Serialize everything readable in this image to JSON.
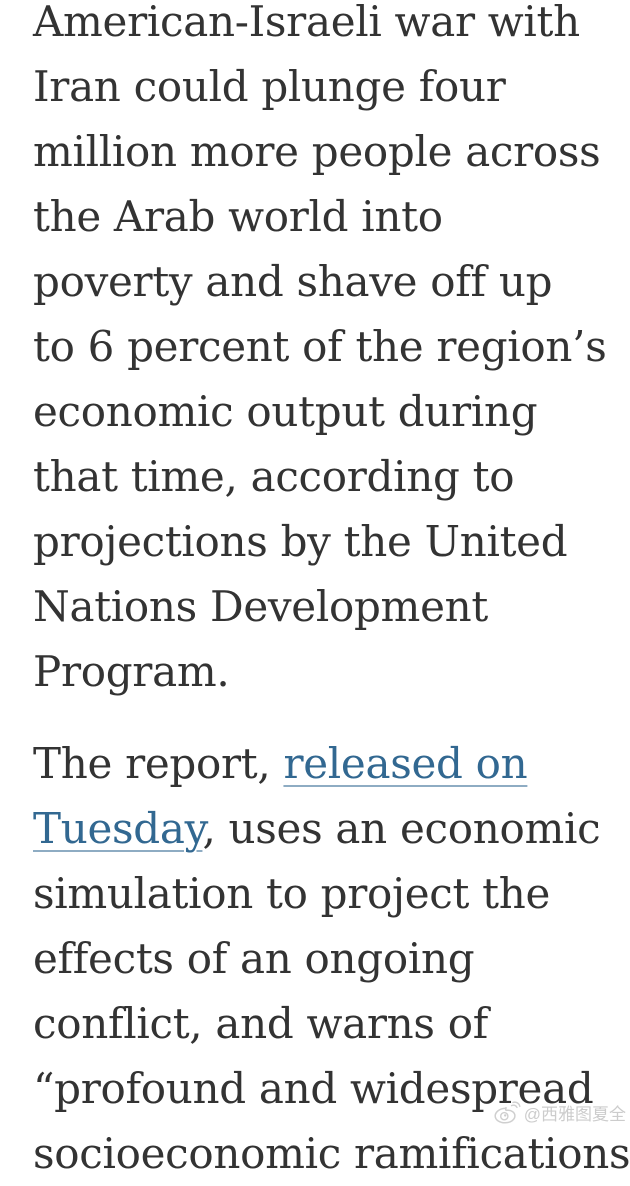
{
  "page": {
    "background": "#ffffff",
    "text_color": "#333333",
    "link_color": "#326891"
  },
  "article": {
    "paragraphs": [
      {
        "lines": [
          [
            {
              "text": "American-Israeli war with"
            }
          ],
          [
            {
              "text": "Iran could plunge four"
            }
          ],
          [
            {
              "text": "million more people across"
            }
          ],
          [
            {
              "text": "the Arab world into"
            }
          ],
          [
            {
              "text": "poverty and shave off up"
            }
          ],
          [
            {
              "text": "to 6 percent of the region’s"
            }
          ],
          [
            {
              "text": "economic output during"
            }
          ],
          [
            {
              "text": "that time, according to"
            }
          ],
          [
            {
              "text": "projections by the United"
            }
          ],
          [
            {
              "text": "Nations Development"
            }
          ],
          [
            {
              "text": "Program."
            }
          ]
        ]
      },
      {
        "lines": [
          [
            {
              "text": "The report, "
            },
            {
              "text": "released on",
              "link": true
            }
          ],
          [
            {
              "text": "Tuesday",
              "link": true
            },
            {
              "text": ", uses an economic"
            }
          ],
          [
            {
              "text": "simulation to project the"
            }
          ],
          [
            {
              "text": "effects of an ongoing"
            }
          ],
          [
            {
              "text": "conflict, and warns of"
            }
          ],
          [
            {
              "text": "“profound and widespread"
            }
          ],
          [
            {
              "text": "socioeconomic ramifications"
            }
          ]
        ]
      }
    ]
  },
  "watermark": {
    "handle": "@西雅图夏全",
    "icon": "weibo-icon"
  }
}
